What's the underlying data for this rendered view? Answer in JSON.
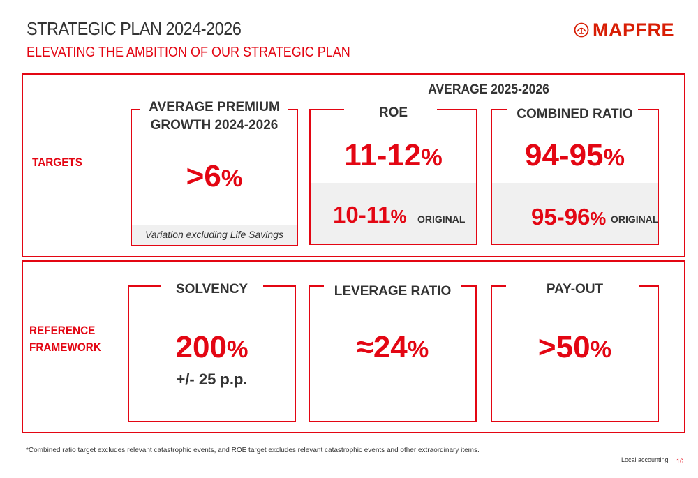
{
  "header": {
    "title": "STRATEGIC PLAN 2024-2026",
    "subtitle": "ELEVATING THE AMBITION OF OUR STRATEGIC PLAN"
  },
  "logo": {
    "text": "MAPFRE",
    "icon": "mapfre-emblem-icon"
  },
  "targets": {
    "label": "TARGETS",
    "average_header": "AVERAGE 2025-2026",
    "premium": {
      "title_line1": "AVERAGE PREMIUM",
      "title_line2": "GROWTH 2024-2026",
      "value": ">6",
      "unit": "%",
      "note": "Variation excluding Life Savings"
    },
    "roe": {
      "title": "ROE",
      "value": "11-12",
      "unit": "%",
      "original_value": "10-11",
      "original_unit": "%",
      "original_label": "ORIGINAL"
    },
    "combined": {
      "title": "COMBINED RATIO",
      "value": "94-95",
      "unit": "%",
      "original_value": "95-96",
      "original_unit": "%",
      "original_label": "ORIGINAL"
    }
  },
  "reference": {
    "label_line1": "REFERENCE",
    "label_line2": "FRAMEWORK",
    "solvency": {
      "title": "SOLVENCY",
      "value": "200",
      "unit": "%",
      "sub": "+/- 25 p.p."
    },
    "leverage": {
      "title": "LEVERAGE RATIO",
      "value": "≈24",
      "unit": "%"
    },
    "payout": {
      "title": "PAY-OUT",
      "value": ">50",
      "unit": "%"
    }
  },
  "footer": {
    "footnote": "*Combined ratio target excludes relevant catastrophic events, and ROE target excludes relevant catastrophic events and other extraordinary items.",
    "local_accounting": "Local accounting",
    "page_number": "16"
  },
  "colors": {
    "accent": "#e30613",
    "text": "#333333",
    "band": "#f0f0f0"
  }
}
